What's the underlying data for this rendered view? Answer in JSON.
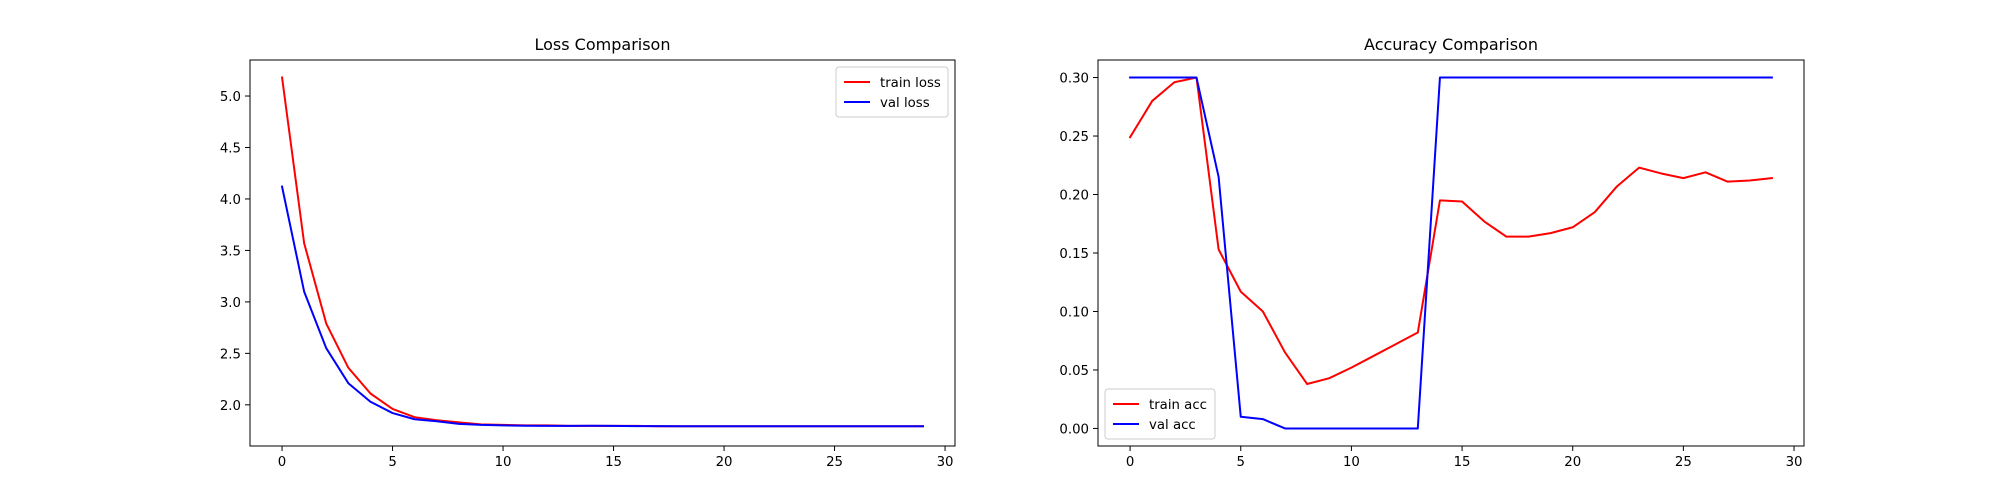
{
  "colors": {
    "train": "#ff0000",
    "val": "#0000ff"
  },
  "chart_data": [
    {
      "type": "line",
      "title": "Loss Comparison",
      "xlabel": "",
      "ylabel": "",
      "xlim": [
        -1.45,
        30.45
      ],
      "ylim": [
        1.6,
        5.35
      ],
      "xticks": [
        0,
        5,
        10,
        15,
        20,
        25,
        30
      ],
      "yticks": [
        2.0,
        2.5,
        3.0,
        3.5,
        4.0,
        4.5,
        5.0
      ],
      "ytick_labels": [
        "2.0",
        "2.5",
        "3.0",
        "3.5",
        "4.0",
        "4.5",
        "5.0"
      ],
      "legend_position": "upper right",
      "x": [
        0,
        1,
        2,
        3,
        4,
        5,
        6,
        7,
        8,
        9,
        10,
        11,
        12,
        13,
        14,
        15,
        16,
        17,
        18,
        19,
        20,
        21,
        22,
        23,
        24,
        25,
        26,
        27,
        28,
        29
      ],
      "series": [
        {
          "name": "train loss",
          "color": "#ff0000",
          "values": [
            5.18,
            3.57,
            2.79,
            2.36,
            2.11,
            1.96,
            1.88,
            1.85,
            1.83,
            1.81,
            1.805,
            1.8,
            1.8,
            1.795,
            1.795,
            1.795,
            1.795,
            1.792,
            1.792,
            1.792,
            1.792,
            1.792,
            1.792,
            1.792,
            1.792,
            1.792,
            1.792,
            1.792,
            1.792,
            1.792
          ]
        },
        {
          "name": "val loss",
          "color": "#0000ff",
          "values": [
            4.12,
            3.1,
            2.55,
            2.21,
            2.03,
            1.92,
            1.86,
            1.84,
            1.815,
            1.805,
            1.8,
            1.797,
            1.795,
            1.795,
            1.797,
            1.795,
            1.793,
            1.793,
            1.792,
            1.792,
            1.792,
            1.792,
            1.792,
            1.792,
            1.792,
            1.792,
            1.792,
            1.792,
            1.792,
            1.792
          ]
        }
      ]
    },
    {
      "type": "line",
      "title": "Accuracy Comparison",
      "xlabel": "",
      "ylabel": "",
      "xlim": [
        -1.45,
        30.45
      ],
      "ylim": [
        -0.015,
        0.315
      ],
      "xticks": [
        0,
        5,
        10,
        15,
        20,
        25,
        30
      ],
      "yticks": [
        0.0,
        0.05,
        0.1,
        0.15,
        0.2,
        0.25,
        0.3
      ],
      "ytick_labels": [
        "0.00",
        "0.05",
        "0.10",
        "0.15",
        "0.20",
        "0.25",
        "0.30"
      ],
      "legend_position": "lower left",
      "x": [
        0,
        1,
        2,
        3,
        4,
        5,
        6,
        7,
        8,
        9,
        10,
        11,
        12,
        13,
        14,
        15,
        16,
        17,
        18,
        19,
        20,
        21,
        22,
        23,
        24,
        25,
        26,
        27,
        28,
        29
      ],
      "series": [
        {
          "name": "train acc",
          "color": "#ff0000",
          "values": [
            0.249,
            0.28,
            0.296,
            0.3,
            0.153,
            0.117,
            0.1,
            0.065,
            0.038,
            0.043,
            0.052,
            0.062,
            0.072,
            0.082,
            0.195,
            0.194,
            0.177,
            0.164,
            0.164,
            0.167,
            0.172,
            0.185,
            0.207,
            0.223,
            0.218,
            0.214,
            0.219,
            0.211,
            0.212,
            0.214
          ]
        },
        {
          "name": "val acc",
          "color": "#0000ff",
          "values": [
            0.3,
            0.3,
            0.3,
            0.3,
            0.215,
            0.01,
            0.008,
            0.0,
            0.0,
            0.0,
            0.0,
            0.0,
            0.0,
            0.0,
            0.3,
            0.3,
            0.3,
            0.3,
            0.3,
            0.3,
            0.3,
            0.3,
            0.3,
            0.3,
            0.3,
            0.3,
            0.3,
            0.3,
            0.3,
            0.3
          ]
        }
      ]
    }
  ]
}
